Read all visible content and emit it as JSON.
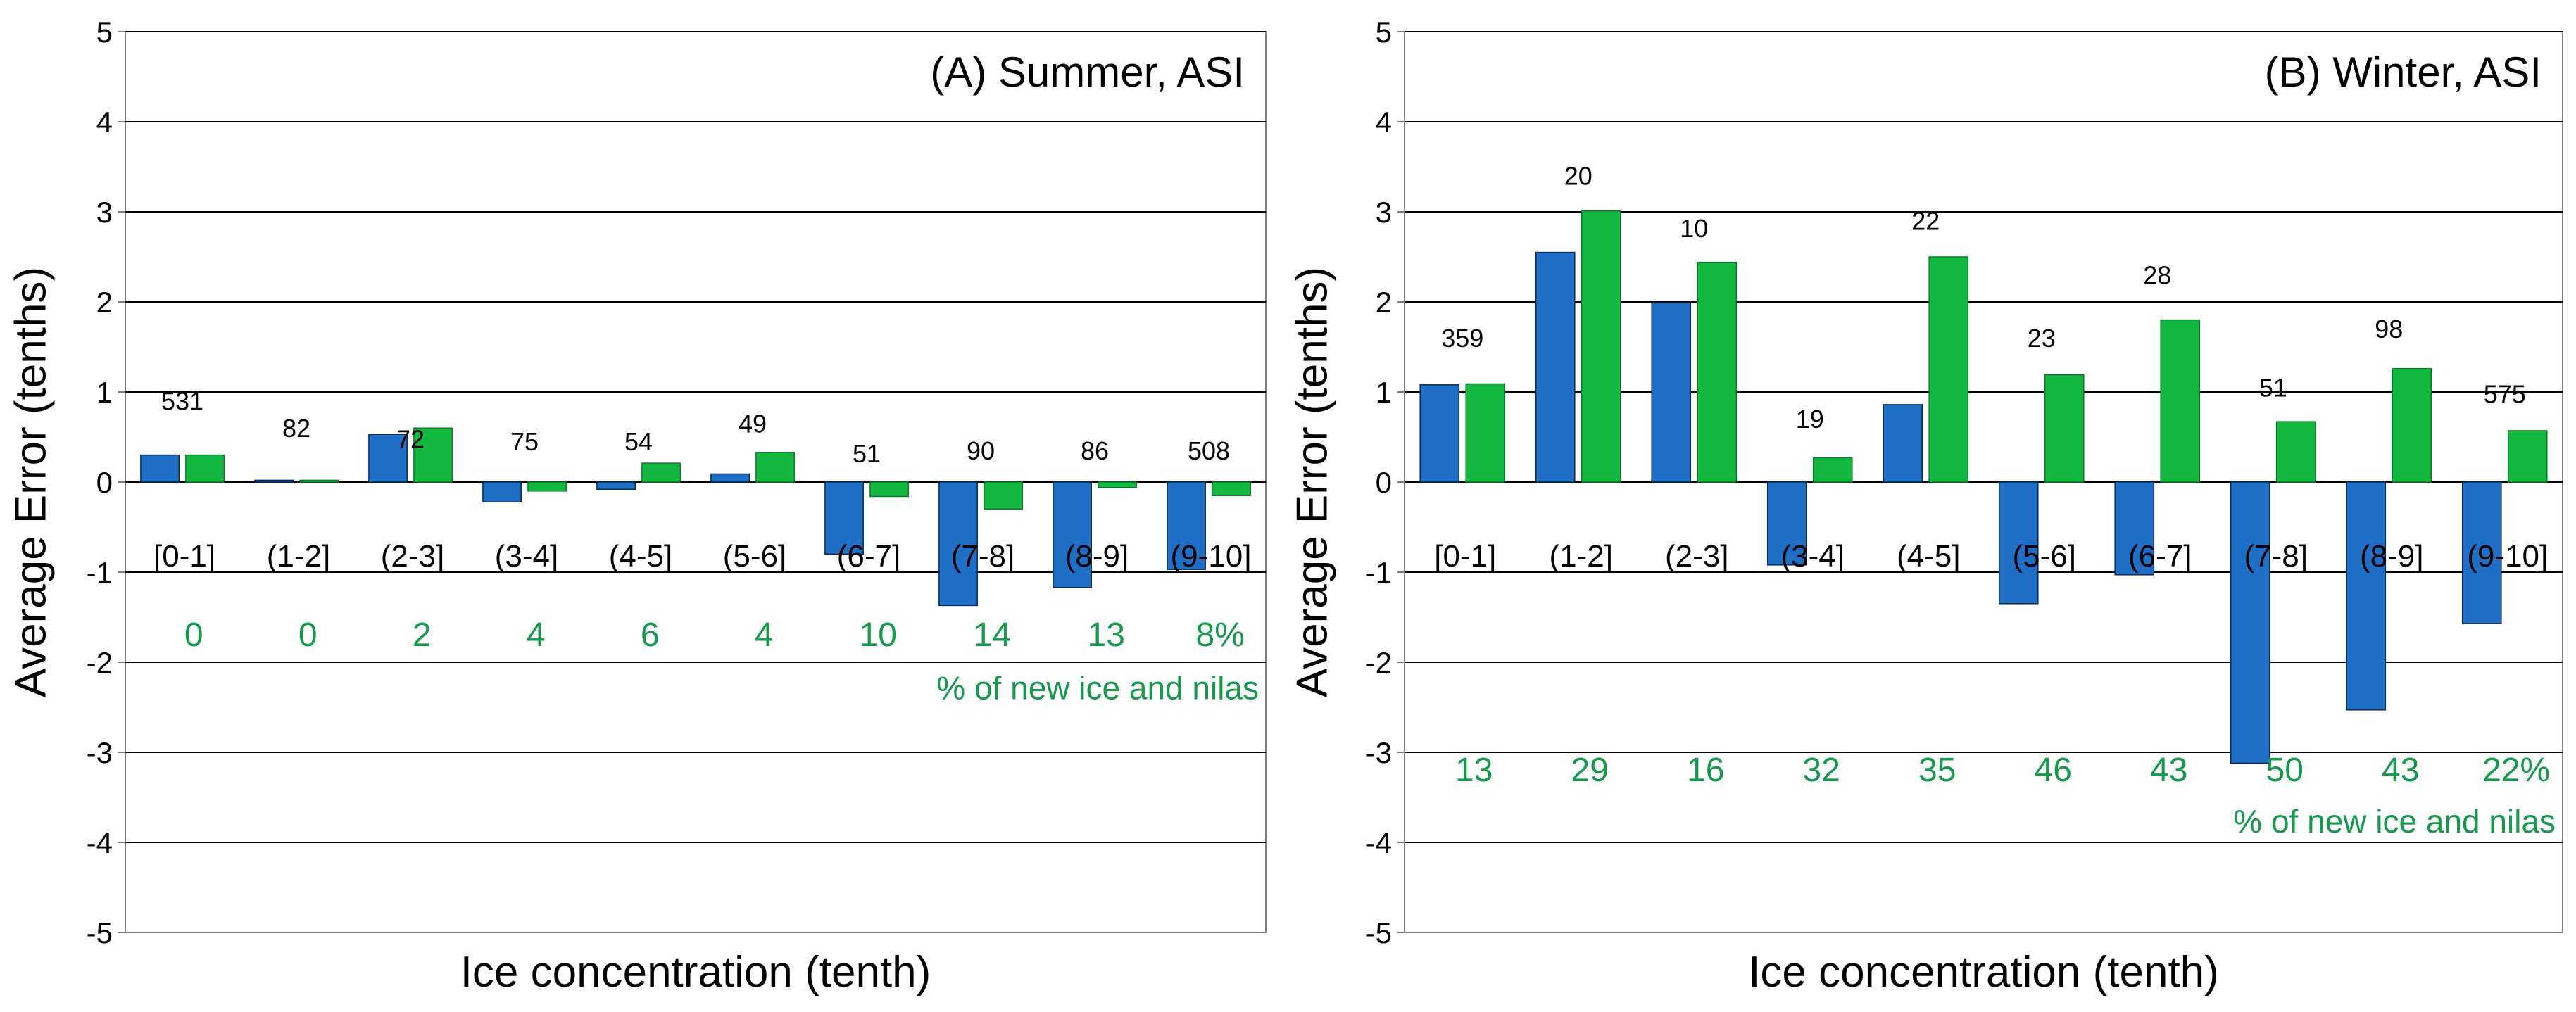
{
  "colors": {
    "series1": "#1f6fc6",
    "series2": "#12b83f",
    "annotation": "#149a4a",
    "grid": "#000000",
    "text": "#000000"
  },
  "chart_data": [
    {
      "type": "bar",
      "title": "(A) Summer, ASI",
      "xlabel": "Ice concentration (tenth)",
      "ylabel": "Average Error (tenths)",
      "ylim": [
        -5,
        5
      ],
      "yticks": [
        "-5",
        "-4",
        "-3",
        "-2",
        "-1",
        "0",
        "1",
        "2",
        "3",
        "4",
        "5"
      ],
      "grid": true,
      "categories": [
        "[0-1]",
        "(1-2]",
        "(2-3]",
        "(3-4]",
        "(4-5]",
        "(5-6]",
        "(6-7]",
        "(7-8]",
        "(8-9]",
        "(9-10]"
      ],
      "series": [
        {
          "name": "blue",
          "values": [
            0.3,
            0.02,
            0.53,
            -0.22,
            -0.08,
            0.09,
            -0.8,
            -1.37,
            -1.17,
            -0.97
          ]
        },
        {
          "name": "green",
          "values": [
            0.3,
            0.02,
            0.6,
            -0.1,
            0.21,
            0.33,
            -0.16,
            -0.3,
            -0.06,
            -0.15
          ]
        }
      ],
      "count_labels": [
        "531",
        "82",
        "72",
        "75",
        "54",
        "49",
        "51",
        "90",
        "86",
        "508"
      ],
      "count_label_y": [
        0.8,
        0.5,
        0.38,
        0.35,
        0.35,
        0.55,
        0.22,
        0.25,
        0.25,
        0.25
      ],
      "percent_labels": [
        "0",
        "0",
        "2",
        "4",
        "6",
        "4",
        "10",
        "14",
        "13",
        "8%"
      ],
      "percent_label_y": -1.82,
      "percent_caption": "% of new ice and nilas",
      "percent_caption_y": -2.3
    },
    {
      "type": "bar",
      "title": "(B) Winter, ASI",
      "xlabel": "Ice concentration (tenth)",
      "ylabel": "Average Error (tenths)",
      "ylim": [
        -5,
        5
      ],
      "yticks": [
        "-5",
        "-4",
        "-3",
        "-2",
        "-1",
        "0",
        "1",
        "2",
        "3",
        "4",
        "5"
      ],
      "grid": true,
      "categories": [
        "[0-1]",
        "(1-2]",
        "(2-3]",
        "(3-4]",
        "(4-5]",
        "(5-6]",
        "(6-7]",
        "(7-8]",
        "(8-9]",
        "(9-10]"
      ],
      "series": [
        {
          "name": "blue",
          "values": [
            1.08,
            2.55,
            1.99,
            -0.92,
            0.86,
            -1.35,
            -1.03,
            -3.12,
            -2.53,
            -1.57
          ]
        },
        {
          "name": "green",
          "values": [
            1.09,
            3.01,
            2.44,
            0.27,
            2.5,
            1.19,
            1.8,
            0.67,
            1.26,
            0.57
          ]
        }
      ],
      "count_labels": [
        "359",
        "20",
        "10",
        "19",
        "22",
        "23",
        "28",
        "51",
        "98",
        "575"
      ],
      "count_label_y": [
        1.5,
        3.3,
        2.72,
        0.6,
        2.8,
        1.5,
        2.2,
        0.95,
        1.6,
        0.88
      ],
      "percent_labels": [
        "13",
        "29",
        "16",
        "32",
        "35",
        "46",
        "43",
        "50",
        "43",
        "22%"
      ],
      "percent_label_y": -3.32,
      "percent_caption": "% of new ice and nilas",
      "percent_caption_y": -3.78
    }
  ]
}
